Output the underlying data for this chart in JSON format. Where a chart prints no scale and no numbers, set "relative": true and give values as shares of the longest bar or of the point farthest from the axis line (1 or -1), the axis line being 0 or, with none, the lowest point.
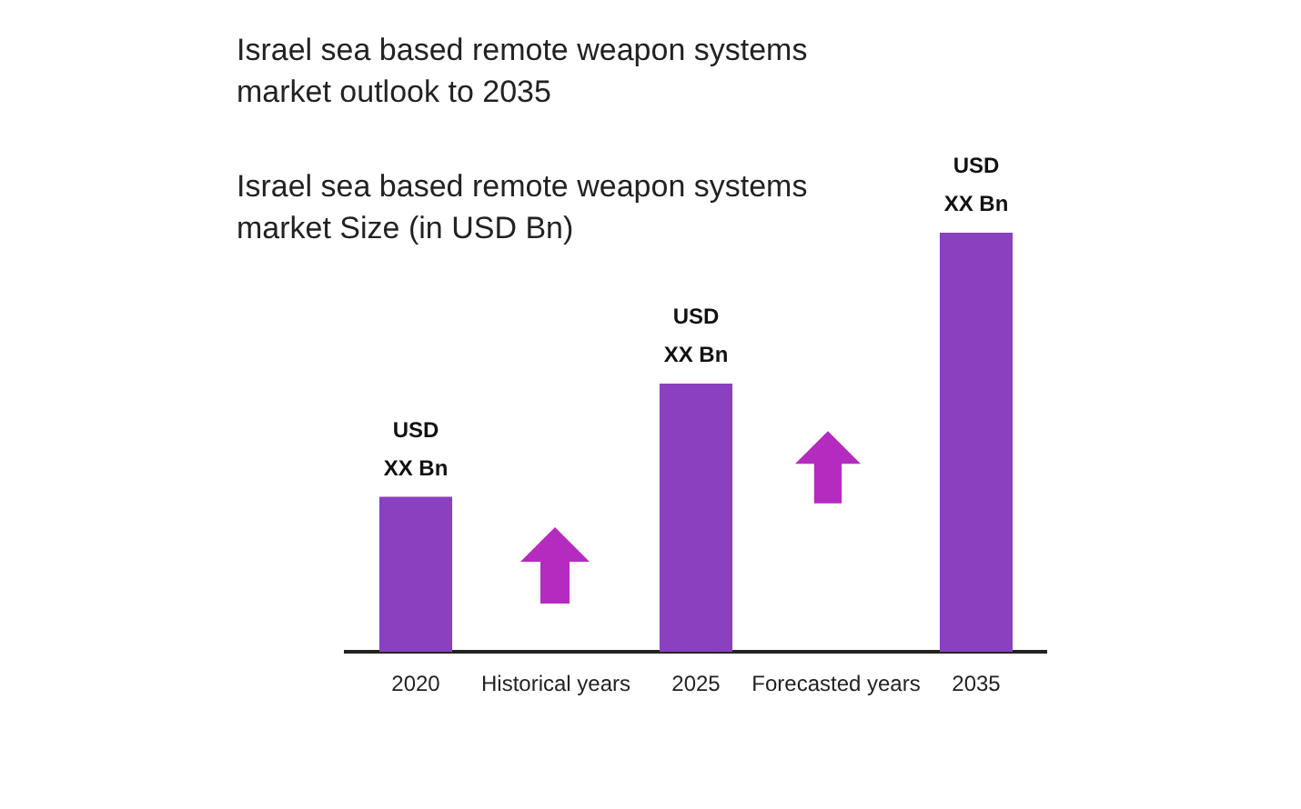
{
  "chart_data": {
    "type": "bar",
    "title": "Israel sea based remote weapon systems market outlook to 2035",
    "subtitle": "Israel sea based remote weapon systems market Size (in USD Bn)",
    "categories": [
      "2020",
      "Historical years",
      "2025",
      "Forecasted years",
      "2035"
    ],
    "values": [
      0.37,
      null,
      0.64,
      null,
      1
    ],
    "annotations": [
      {
        "text": "USD XX Bn",
        "x": "2020",
        "y": 0.37
      },
      {
        "text": "USD XX Bn",
        "x": "2025",
        "y": 0.64
      },
      {
        "text": "USD XX Bn",
        "x": "2035",
        "y": 1
      }
    ],
    "color": "#8a40bf",
    "relative": true,
    "legend": false,
    "grid": false
  }
}
